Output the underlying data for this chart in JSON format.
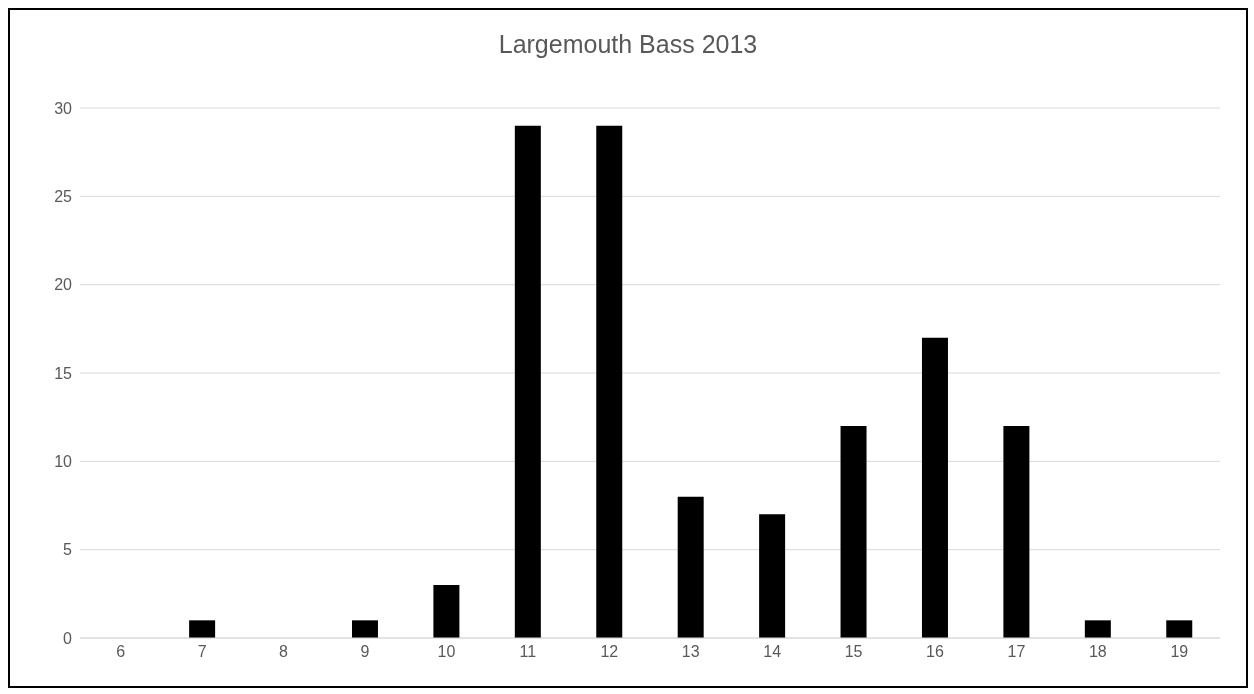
{
  "chart_data": {
    "type": "bar",
    "title": "Largemouth Bass 2013",
    "categories": [
      "6",
      "7",
      "8",
      "9",
      "10",
      "11",
      "12",
      "13",
      "14",
      "15",
      "16",
      "17",
      "18",
      "19"
    ],
    "values": [
      0,
      1,
      0,
      1,
      3,
      29,
      29,
      8,
      7,
      12,
      17,
      12,
      1,
      1
    ],
    "color": "#000000",
    "ylim": [
      0,
      30
    ],
    "yticks": [
      0,
      5,
      10,
      15,
      20,
      25,
      30
    ],
    "grid": "y",
    "legend": false
  }
}
